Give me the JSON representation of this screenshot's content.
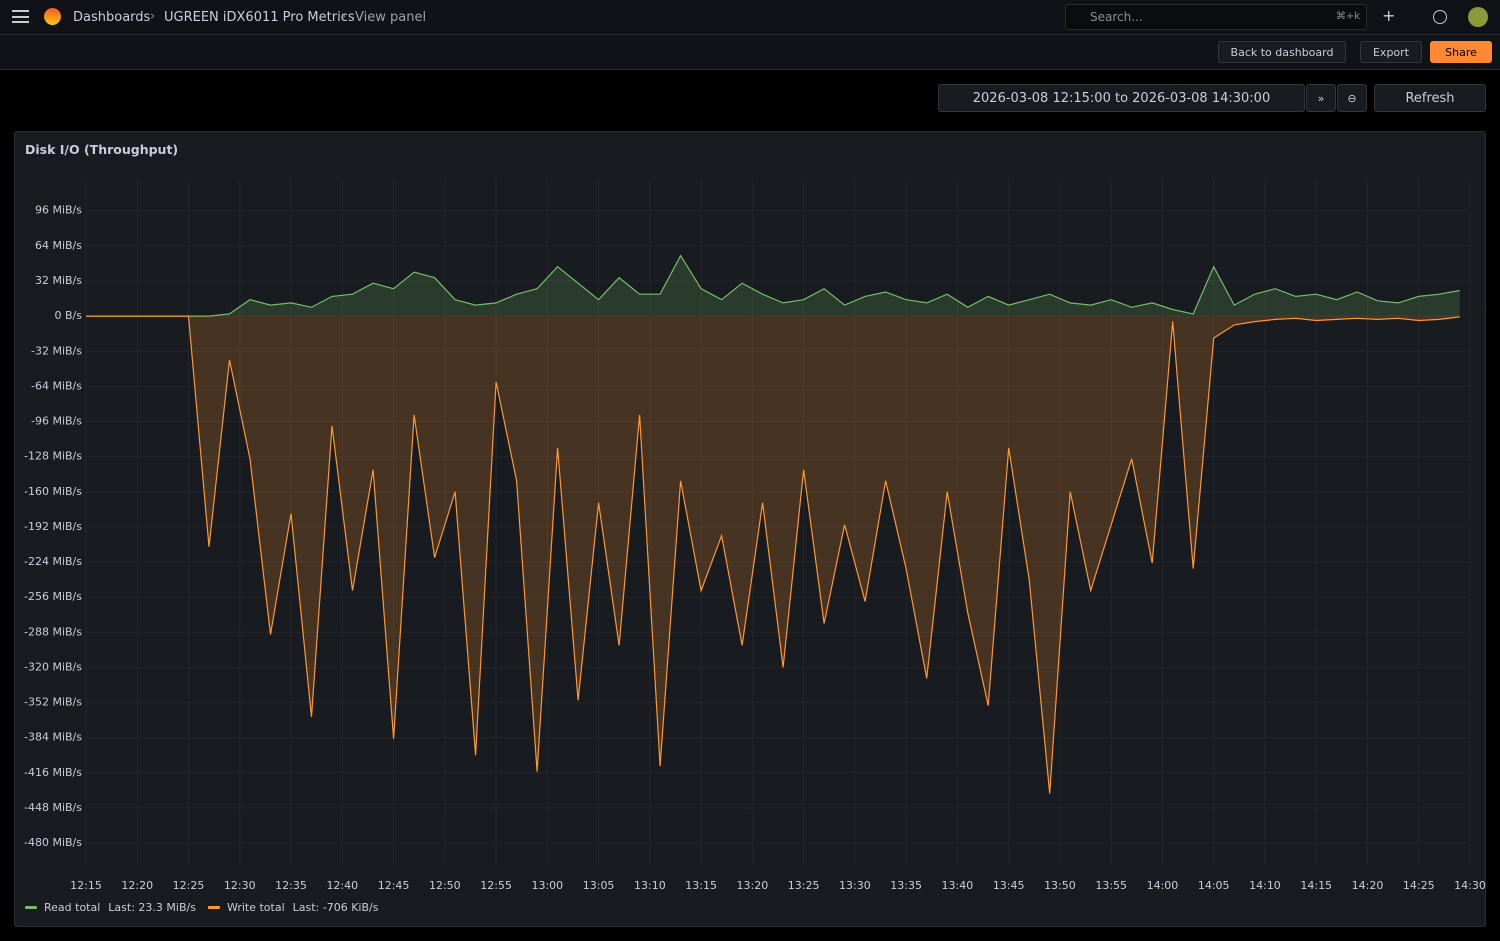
{
  "header": {
    "breadcrumbs": [
      "Dashboards",
      "UGREEN iDX6011 Pro Metrics",
      "View panel"
    ],
    "search": "Search...",
    "shortcut": "⌘+k"
  },
  "toolbar": {
    "back": "Back to dashboard",
    "export": "Export",
    "share": "Share"
  },
  "timepicker": {
    "range": "2026-03-08 12:15:00 to 2026-03-08 14:30:00",
    "refresh": "Refresh"
  },
  "chart_data": {
    "type": "area",
    "title": "Disk I/O (Throughput)",
    "x": [
      "12:15",
      "12:17",
      "12:19",
      "12:21",
      "12:23",
      "12:25",
      "12:27",
      "12:29",
      "12:31",
      "12:33",
      "12:35",
      "12:37",
      "12:39",
      "12:41",
      "12:43",
      "12:45",
      "12:47",
      "12:49",
      "12:51",
      "12:53",
      "12:55",
      "12:57",
      "12:59",
      "13:01",
      "13:03",
      "13:05",
      "13:07",
      "13:09",
      "13:11",
      "13:13",
      "13:15",
      "13:17",
      "13:19",
      "13:21",
      "13:23",
      "13:25",
      "13:27",
      "13:29",
      "13:31",
      "13:33",
      "13:35",
      "13:37",
      "13:39",
      "13:41",
      "13:43",
      "13:45",
      "13:47",
      "13:49",
      "13:51",
      "13:53",
      "13:55",
      "13:57",
      "13:59",
      "14:01",
      "14:03",
      "14:05",
      "14:07",
      "14:09",
      "14:11",
      "14:13",
      "14:15",
      "14:17",
      "14:19",
      "14:21",
      "14:23",
      "14:25",
      "14:27",
      "14:29"
    ],
    "series": [
      {
        "name": "Read total",
        "last_label": "Last: 23.3 MiB/s",
        "color": "#73bf69",
        "values": [
          0,
          0,
          0,
          0,
          0,
          0,
          0,
          2,
          15,
          10,
          12,
          8,
          18,
          20,
          30,
          25,
          40,
          35,
          15,
          10,
          12,
          20,
          25,
          45,
          30,
          15,
          35,
          20,
          20,
          55,
          25,
          15,
          30,
          20,
          12,
          15,
          25,
          10,
          18,
          22,
          15,
          12,
          20,
          8,
          18,
          10,
          15,
          20,
          12,
          10,
          15,
          8,
          12,
          6,
          2,
          45,
          10,
          20,
          25,
          18,
          20,
          15,
          22,
          14,
          12,
          18,
          20,
          23.3
        ]
      },
      {
        "name": "Write total",
        "last_label": "Last: -706 KiB/s",
        "color": "#ff9830",
        "values": [
          0,
          0,
          0,
          0,
          0,
          0,
          -210,
          -40,
          -130,
          -290,
          -180,
          -365,
          -100,
          -250,
          -140,
          -385,
          -90,
          -220,
          -160,
          -400,
          -60,
          -150,
          -415,
          -120,
          -350,
          -170,
          -300,
          -90,
          -410,
          -150,
          -250,
          -200,
          -300,
          -170,
          -320,
          -140,
          -280,
          -190,
          -260,
          -150,
          -230,
          -330,
          -160,
          -270,
          -355,
          -120,
          -240,
          -435,
          -160,
          -250,
          -190,
          -130,
          -225,
          -5,
          -230,
          -20,
          -8,
          -5,
          -3,
          -2,
          -4,
          -3,
          -2,
          -3,
          -2,
          -4,
          -3,
          -0.69
        ]
      }
    ],
    "xlim": [
      "12:15",
      "14:30"
    ],
    "xticks": [
      "12:15",
      "12:20",
      "12:25",
      "12:30",
      "12:35",
      "12:40",
      "12:45",
      "12:50",
      "12:55",
      "13:00",
      "13:05",
      "13:10",
      "13:15",
      "13:20",
      "13:25",
      "13:30",
      "13:35",
      "13:40",
      "13:45",
      "13:50",
      "13:55",
      "14:00",
      "14:05",
      "14:10",
      "14:15",
      "14:20",
      "14:25",
      "14:30"
    ],
    "ylim": [
      -500,
      124
    ],
    "yticks": [
      {
        "value": 96,
        "label": "96 MiB/s"
      },
      {
        "value": 64,
        "label": "64 MiB/s"
      },
      {
        "value": 32,
        "label": "32 MiB/s"
      },
      {
        "value": 0,
        "label": "0 B/s"
      },
      {
        "value": -32,
        "label": "-32 MiB/s"
      },
      {
        "value": -64,
        "label": "-64 MiB/s"
      },
      {
        "value": -96,
        "label": "-96 MiB/s"
      },
      {
        "value": -128,
        "label": "-128 MiB/s"
      },
      {
        "value": -160,
        "label": "-160 MiB/s"
      },
      {
        "value": -192,
        "label": "-192 MiB/s"
      },
      {
        "value": -224,
        "label": "-224 MiB/s"
      },
      {
        "value": -256,
        "label": "-256 MiB/s"
      },
      {
        "value": -288,
        "label": "-288 MiB/s"
      },
      {
        "value": -320,
        "label": "-320 MiB/s"
      },
      {
        "value": -352,
        "label": "-352 MiB/s"
      },
      {
        "value": -384,
        "label": "-384 MiB/s"
      },
      {
        "value": -416,
        "label": "-416 MiB/s"
      },
      {
        "value": -448,
        "label": "-448 MiB/s"
      },
      {
        "value": -480,
        "label": "-480 MiB/s"
      }
    ],
    "grid": true
  }
}
